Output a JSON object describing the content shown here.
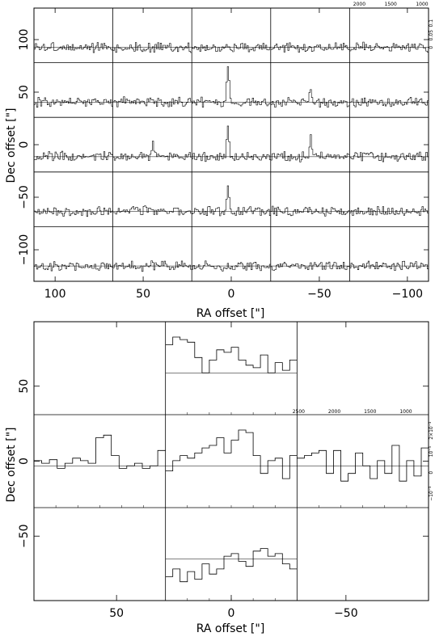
{
  "chart_data": [
    {
      "type": "line",
      "panel": "top-grid",
      "xlabel": "RA offset   [\"]",
      "ylabel": "Dec offset   [\"]",
      "xlim": [
        112,
        -112
      ],
      "ylim": [
        -130,
        130
      ],
      "x_ticks": [
        {
          "value": 100,
          "label": "100"
        },
        {
          "value": 50,
          "label": "50"
        },
        {
          "value": 0,
          "label": "0"
        },
        {
          "value": -50,
          "label": "−50"
        },
        {
          "value": -100,
          "label": "−100"
        }
      ],
      "y_ticks": [
        {
          "value": 100,
          "label": "100"
        },
        {
          "value": 50,
          "label": "50"
        },
        {
          "value": 0,
          "label": "0"
        },
        {
          "value": -50,
          "label": "−50"
        },
        {
          "value": -100,
          "label": "−100"
        }
      ],
      "grid": {
        "rows": 5,
        "cols": 5
      },
      "inset_x_ticks": [
        "2000",
        "1500",
        "1000"
      ],
      "inset_y_ticks": [
        "0",
        "0.05",
        "0.1"
      ],
      "emission_peaks": [
        {
          "row": 1,
          "col": 2,
          "channel": 0.45,
          "height": 0.75
        },
        {
          "row": 2,
          "col": 2,
          "channel": 0.45,
          "height": 0.6
        },
        {
          "row": 3,
          "col": 2,
          "channel": 0.45,
          "height": 0.5
        },
        {
          "row": 2,
          "col": 3,
          "channel": 0.5,
          "height": 0.35
        },
        {
          "row": 2,
          "col": 1,
          "channel": 0.5,
          "height": 0.3
        },
        {
          "row": 1,
          "col": 3,
          "channel": 0.5,
          "height": 0.2
        }
      ]
    },
    {
      "type": "line",
      "panel": "bottom-grid",
      "xlabel": "RA offset   [\"]",
      "ylabel": "Dec offset   [\"]",
      "xlim": [
        86,
        -86
      ],
      "ylim": [
        -93,
        93
      ],
      "x_ticks": [
        {
          "value": 50,
          "label": "50"
        },
        {
          "value": 0,
          "label": "0"
        },
        {
          "value": -50,
          "label": "−50"
        }
      ],
      "y_ticks": [
        {
          "value": 50,
          "label": "50"
        },
        {
          "value": 0,
          "label": "0"
        },
        {
          "value": -50,
          "label": "−50"
        }
      ],
      "grid": {
        "rows": 3,
        "cols": 3
      },
      "inset_x_ticks": [
        "2500",
        "2000",
        "1500",
        "1000"
      ],
      "inset_y_ticks": [
        "−10⁻³",
        "0",
        "10⁻³",
        "2×10⁻³"
      ],
      "spectra": [
        {
          "row": 0,
          "col": 1,
          "values": [
            0.55,
            0.7,
            0.65,
            0.6,
            0.3,
            0.0,
            0.25,
            0.45,
            0.4,
            0.5,
            0.25,
            0.15,
            0.1,
            0.35,
            0.0,
            0.2,
            0.05,
            0.25
          ]
        },
        {
          "row": 1,
          "col": 0,
          "values": [
            0.1,
            0.05,
            0.12,
            -0.05,
            0.05,
            0.15,
            0.1,
            0.05,
            0.55,
            0.6,
            0.2,
            -0.05,
            0.0,
            0.05,
            -0.05,
            0.0,
            0.3
          ]
        },
        {
          "row": 1,
          "col": 1,
          "values": [
            -0.1,
            0.1,
            0.2,
            0.15,
            0.25,
            0.35,
            0.4,
            0.55,
            0.25,
            0.5,
            0.7,
            0.65,
            0.2,
            -0.15,
            0.1,
            0.15,
            -0.25,
            0.2
          ]
        },
        {
          "row": 1,
          "col": 2,
          "values": [
            0.15,
            0.2,
            0.25,
            0.3,
            -0.15,
            0.3,
            -0.3,
            -0.15,
            0.25,
            0.0,
            -0.25,
            0.1,
            -0.15,
            0.4,
            -0.3,
            0.1,
            -0.2,
            0.35
          ]
        },
        {
          "row": 2,
          "col": 1,
          "values": [
            -0.35,
            -0.2,
            -0.45,
            -0.25,
            -0.4,
            -0.1,
            -0.3,
            -0.2,
            0.05,
            0.1,
            -0.05,
            -0.15,
            0.15,
            0.2,
            0.05,
            0.1,
            -0.1,
            -0.2
          ]
        }
      ]
    }
  ]
}
